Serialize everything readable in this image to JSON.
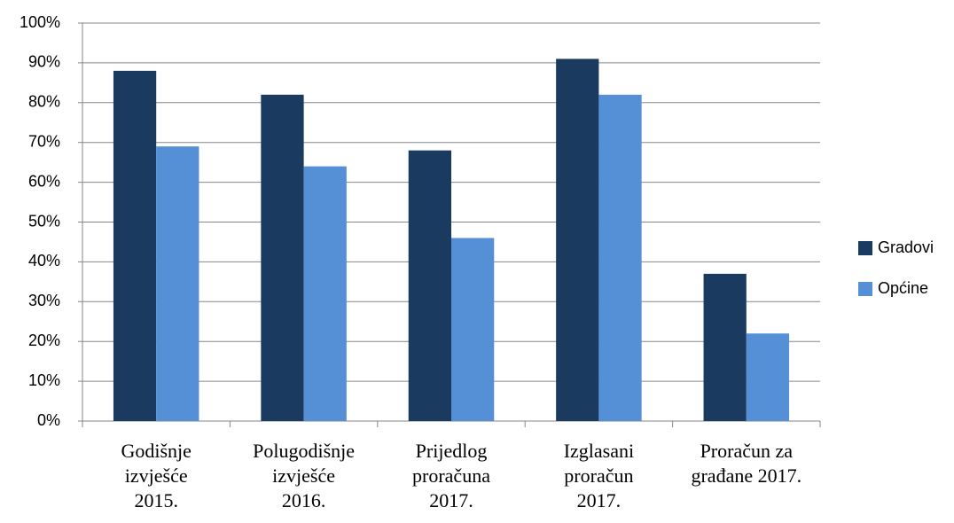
{
  "chart_data": {
    "type": "bar",
    "categories": [
      "Godišnje\nizvješće\n2015.",
      "Polugodišnje\nizvješće\n2016.",
      "Prijedlog\nproračuna\n2017.",
      "Izglasani\nproračun\n2017.",
      "Proračun za\ngrađane 2017."
    ],
    "series": [
      {
        "name": "Gradovi",
        "color": "#1b3a5f",
        "values": [
          88,
          82,
          68,
          91,
          37
        ]
      },
      {
        "name": "Općine",
        "color": "#5590d6",
        "values": [
          69,
          64,
          46,
          82,
          22
        ]
      }
    ],
    "ylim": [
      0,
      100
    ],
    "yticks": [
      {
        "value": 0,
        "label": "0%"
      },
      {
        "value": 10,
        "label": "10%"
      },
      {
        "value": 20,
        "label": "20%"
      },
      {
        "value": 30,
        "label": "30%"
      },
      {
        "value": 40,
        "label": "40%"
      },
      {
        "value": 50,
        "label": "50%"
      },
      {
        "value": 60,
        "label": "60%"
      },
      {
        "value": 70,
        "label": "70%"
      },
      {
        "value": 80,
        "label": "80%"
      },
      {
        "value": 90,
        "label": "90%"
      },
      {
        "value": 100,
        "label": "100%"
      }
    ],
    "grid": true,
    "legend": "right"
  }
}
